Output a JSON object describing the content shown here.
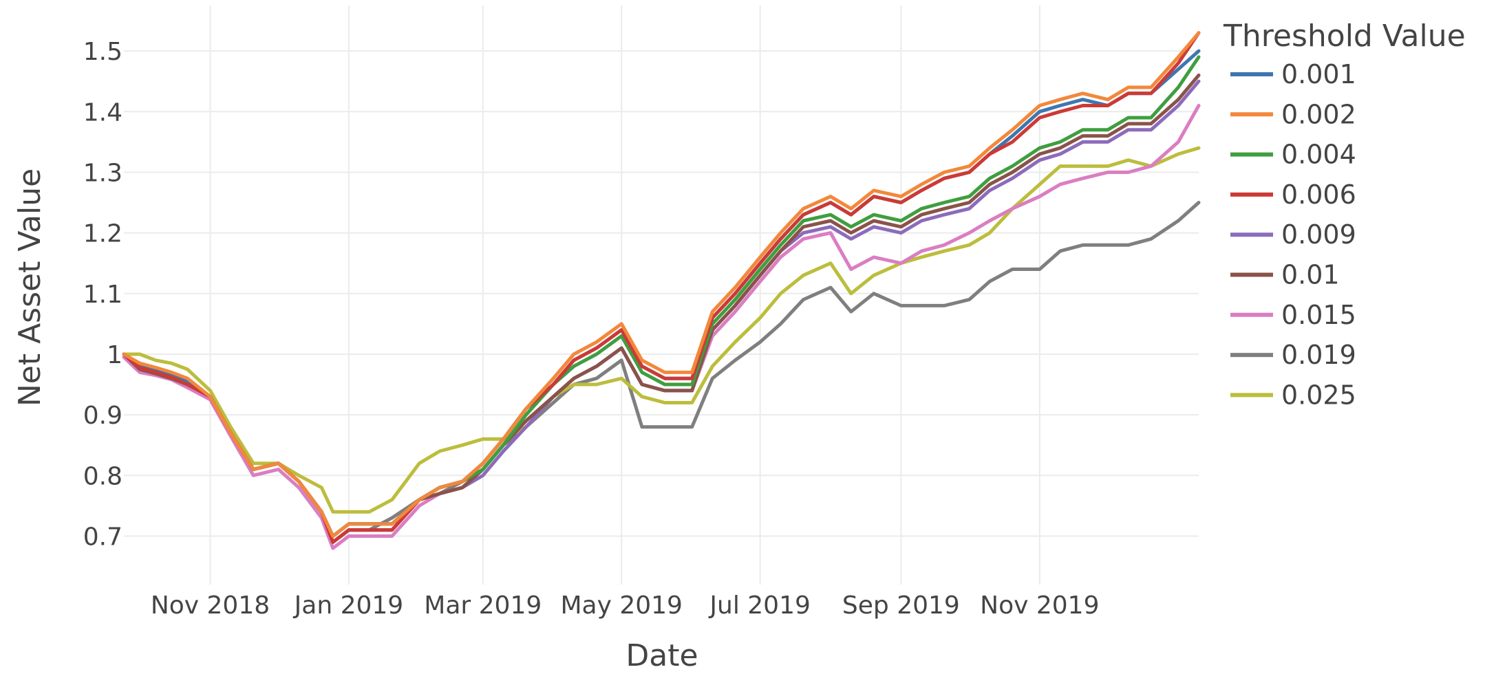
{
  "chart_data": {
    "type": "line",
    "xlabel": "Date",
    "ylabel": "Net Asset Value",
    "legend_title": "Threshold Value",
    "legend_position": "right",
    "grid": true,
    "xlim": [
      "2018-09-24",
      "2020-01-10"
    ],
    "ylim": [
      0.62,
      1.575
    ],
    "x_ticks": [
      {
        "date": "2018-11-01",
        "label": "Nov 2018"
      },
      {
        "date": "2019-01-01",
        "label": "Jan 2019"
      },
      {
        "date": "2019-03-01",
        "label": "Mar 2019"
      },
      {
        "date": "2019-05-01",
        "label": "May 2019"
      },
      {
        "date": "2019-07-01",
        "label": "Jul 2019"
      },
      {
        "date": "2019-09-01",
        "label": "Sep 2019"
      },
      {
        "date": "2019-11-01",
        "label": "Nov 2019"
      }
    ],
    "y_ticks": [
      {
        "value": 0.7,
        "label": "0.7"
      },
      {
        "value": 0.8,
        "label": "0.8"
      },
      {
        "value": 0.9,
        "label": "0.9"
      },
      {
        "value": 1.0,
        "label": "1"
      },
      {
        "value": 1.1,
        "label": "1.1"
      },
      {
        "value": 1.2,
        "label": "1.2"
      },
      {
        "value": 1.3,
        "label": "1.3"
      },
      {
        "value": 1.4,
        "label": "1.4"
      },
      {
        "value": 1.5,
        "label": "1.5"
      }
    ],
    "x": [
      "2018-09-24",
      "2018-10-01",
      "2018-10-08",
      "2018-10-15",
      "2018-10-22",
      "2018-11-01",
      "2018-11-10",
      "2018-11-20",
      "2018-12-01",
      "2018-12-10",
      "2018-12-20",
      "2018-12-25",
      "2019-01-01",
      "2019-01-10",
      "2019-01-20",
      "2019-02-01",
      "2019-02-10",
      "2019-02-20",
      "2019-03-01",
      "2019-03-10",
      "2019-03-20",
      "2019-04-01",
      "2019-04-10",
      "2019-04-20",
      "2019-05-01",
      "2019-05-10",
      "2019-05-20",
      "2019-06-01",
      "2019-06-10",
      "2019-06-20",
      "2019-07-01",
      "2019-07-10",
      "2019-07-20",
      "2019-08-01",
      "2019-08-10",
      "2019-08-20",
      "2019-09-01",
      "2019-09-10",
      "2019-09-20",
      "2019-10-01",
      "2019-10-10",
      "2019-10-20",
      "2019-11-01",
      "2019-11-10",
      "2019-11-20",
      "2019-12-01",
      "2019-12-10",
      "2019-12-20",
      "2020-01-01",
      "2020-01-10"
    ],
    "series": [
      {
        "name": "0.001",
        "color": "#3d77b0",
        "values": [
          1.0,
          0.98,
          0.975,
          0.968,
          0.955,
          0.93,
          0.87,
          0.81,
          0.82,
          0.79,
          0.74,
          0.7,
          0.72,
          0.72,
          0.72,
          0.76,
          0.78,
          0.79,
          0.82,
          0.86,
          0.91,
          0.95,
          0.99,
          1.01,
          1.04,
          0.98,
          0.96,
          0.96,
          1.06,
          1.1,
          1.15,
          1.19,
          1.23,
          1.25,
          1.23,
          1.26,
          1.25,
          1.27,
          1.29,
          1.3,
          1.33,
          1.36,
          1.4,
          1.41,
          1.42,
          1.41,
          1.43,
          1.43,
          1.47,
          1.5
        ]
      },
      {
        "name": "0.002",
        "color": "#f2883b",
        "values": [
          1.0,
          0.985,
          0.978,
          0.97,
          0.96,
          0.93,
          0.87,
          0.81,
          0.82,
          0.79,
          0.74,
          0.7,
          0.72,
          0.72,
          0.72,
          0.76,
          0.78,
          0.79,
          0.82,
          0.86,
          0.91,
          0.96,
          1.0,
          1.02,
          1.05,
          0.99,
          0.97,
          0.97,
          1.07,
          1.11,
          1.16,
          1.2,
          1.24,
          1.26,
          1.24,
          1.27,
          1.26,
          1.28,
          1.3,
          1.31,
          1.34,
          1.37,
          1.41,
          1.42,
          1.43,
          1.42,
          1.44,
          1.44,
          1.49,
          1.53
        ]
      },
      {
        "name": "0.004",
        "color": "#3f9e3f",
        "values": [
          1.0,
          0.98,
          0.972,
          0.965,
          0.952,
          0.93,
          0.87,
          0.81,
          0.82,
          0.79,
          0.74,
          0.7,
          0.72,
          0.72,
          0.72,
          0.76,
          0.78,
          0.79,
          0.81,
          0.85,
          0.9,
          0.95,
          0.98,
          1.0,
          1.03,
          0.97,
          0.95,
          0.95,
          1.05,
          1.09,
          1.14,
          1.18,
          1.22,
          1.23,
          1.21,
          1.23,
          1.22,
          1.24,
          1.25,
          1.26,
          1.29,
          1.31,
          1.34,
          1.35,
          1.37,
          1.37,
          1.39,
          1.39,
          1.44,
          1.49
        ]
      },
      {
        "name": "0.006",
        "color": "#cc3a36",
        "values": [
          1.0,
          0.978,
          0.97,
          0.962,
          0.95,
          0.93,
          0.87,
          0.81,
          0.82,
          0.79,
          0.74,
          0.69,
          0.71,
          0.71,
          0.71,
          0.76,
          0.78,
          0.79,
          0.82,
          0.86,
          0.91,
          0.95,
          0.99,
          1.01,
          1.04,
          0.98,
          0.96,
          0.96,
          1.06,
          1.1,
          1.15,
          1.19,
          1.23,
          1.25,
          1.23,
          1.26,
          1.25,
          1.27,
          1.29,
          1.3,
          1.33,
          1.35,
          1.39,
          1.4,
          1.41,
          1.41,
          1.43,
          1.43,
          1.48,
          1.53
        ]
      },
      {
        "name": "0.009",
        "color": "#8c6bbb",
        "values": [
          1.0,
          0.975,
          0.968,
          0.96,
          0.95,
          0.93,
          0.87,
          0.81,
          0.82,
          0.79,
          0.74,
          0.69,
          0.71,
          0.71,
          0.71,
          0.76,
          0.77,
          0.78,
          0.8,
          0.84,
          0.88,
          0.93,
          0.96,
          0.98,
          1.01,
          0.95,
          0.94,
          0.94,
          1.04,
          1.08,
          1.13,
          1.17,
          1.2,
          1.21,
          1.19,
          1.21,
          1.2,
          1.22,
          1.23,
          1.24,
          1.27,
          1.29,
          1.32,
          1.33,
          1.35,
          1.35,
          1.37,
          1.37,
          1.41,
          1.45
        ]
      },
      {
        "name": "0.01",
        "color": "#8a5349",
        "values": [
          1.0,
          0.975,
          0.968,
          0.96,
          0.95,
          0.93,
          0.87,
          0.81,
          0.82,
          0.79,
          0.74,
          0.69,
          0.71,
          0.71,
          0.71,
          0.76,
          0.77,
          0.78,
          0.81,
          0.85,
          0.89,
          0.93,
          0.96,
          0.98,
          1.01,
          0.95,
          0.94,
          0.94,
          1.04,
          1.08,
          1.13,
          1.17,
          1.21,
          1.22,
          1.2,
          1.22,
          1.21,
          1.23,
          1.24,
          1.25,
          1.28,
          1.3,
          1.33,
          1.34,
          1.36,
          1.36,
          1.38,
          1.38,
          1.42,
          1.46
        ]
      },
      {
        "name": "0.015",
        "color": "#da7ec2",
        "values": [
          0.995,
          0.97,
          0.965,
          0.958,
          0.945,
          0.925,
          0.865,
          0.8,
          0.81,
          0.78,
          0.73,
          0.68,
          0.7,
          0.7,
          0.7,
          0.75,
          0.77,
          0.78,
          0.81,
          0.85,
          0.89,
          0.93,
          0.96,
          0.98,
          1.01,
          0.95,
          0.94,
          0.94,
          1.03,
          1.07,
          1.12,
          1.16,
          1.19,
          1.2,
          1.14,
          1.16,
          1.15,
          1.17,
          1.18,
          1.2,
          1.22,
          1.24,
          1.26,
          1.28,
          1.29,
          1.3,
          1.3,
          1.31,
          1.35,
          1.41
        ]
      },
      {
        "name": "0.019",
        "color": "#7f7f7f",
        "values": [
          1.0,
          0.98,
          0.975,
          0.968,
          0.955,
          0.93,
          0.87,
          0.81,
          0.82,
          0.79,
          0.74,
          0.69,
          0.71,
          0.71,
          0.73,
          0.76,
          0.77,
          0.79,
          0.81,
          0.85,
          0.88,
          0.92,
          0.95,
          0.96,
          0.99,
          0.88,
          0.88,
          0.88,
          0.96,
          0.99,
          1.02,
          1.05,
          1.09,
          1.11,
          1.07,
          1.1,
          1.08,
          1.08,
          1.08,
          1.09,
          1.12,
          1.14,
          1.14,
          1.17,
          1.18,
          1.18,
          1.18,
          1.19,
          1.22,
          1.25
        ]
      },
      {
        "name": "0.025",
        "color": "#bcbd3d",
        "values": [
          1.0,
          1.0,
          0.99,
          0.985,
          0.975,
          0.94,
          0.88,
          0.82,
          0.82,
          0.8,
          0.78,
          0.74,
          0.74,
          0.74,
          0.76,
          0.82,
          0.84,
          0.85,
          0.86,
          0.86,
          0.88,
          0.93,
          0.95,
          0.95,
          0.96,
          0.93,
          0.92,
          0.92,
          0.98,
          1.02,
          1.06,
          1.1,
          1.13,
          1.15,
          1.1,
          1.13,
          1.15,
          1.16,
          1.17,
          1.18,
          1.2,
          1.24,
          1.28,
          1.31,
          1.31,
          1.31,
          1.32,
          1.31,
          1.33,
          1.34
        ]
      }
    ]
  }
}
